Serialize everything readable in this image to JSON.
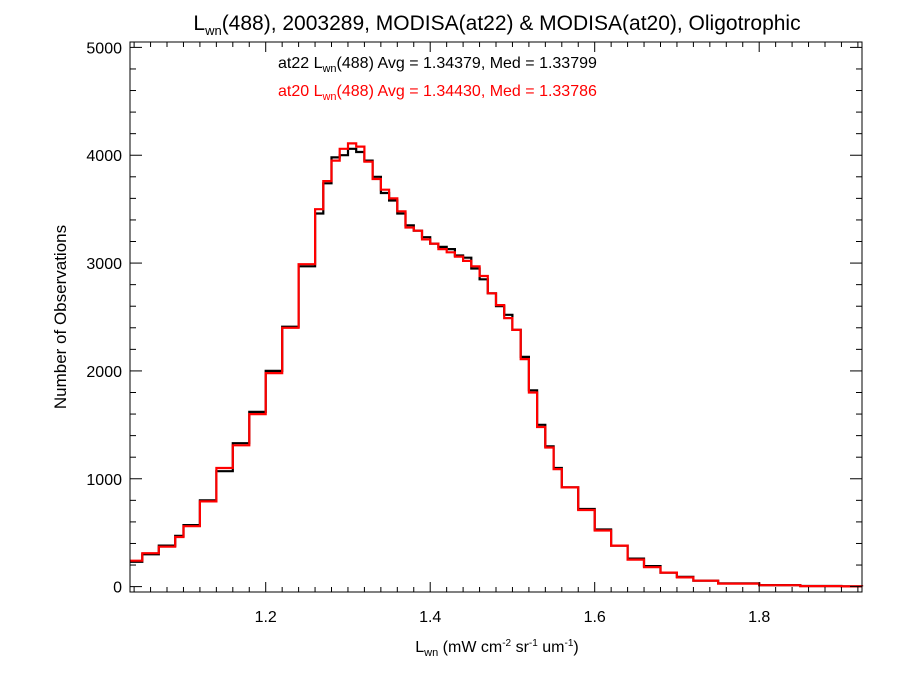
{
  "chart_data": {
    "type": "line",
    "title": {
      "base": "L",
      "sub": "wn",
      "rest": "(488), 2003289, MODISA(at22) & MODISA(at20), Oligotrophic"
    },
    "xlabel": {
      "base": "L",
      "sub": "wn",
      "rest1": " (mW cm",
      "sup1": "-2",
      "rest2": " sr",
      "sup2": "-1",
      "rest3": " um",
      "sup3": "-1",
      "rest4": ")"
    },
    "ylabel": "Number of Observations",
    "xlim": [
      1.035,
      1.925
    ],
    "ylim": [
      -50,
      5050
    ],
    "x_ticks": [
      1.2,
      1.4,
      1.6,
      1.8
    ],
    "x_tick_labels": [
      "1.2",
      "1.4",
      "1.6",
      "1.8"
    ],
    "y_ticks": [
      0,
      1000,
      2000,
      3000,
      4000,
      5000
    ],
    "y_tick_labels": [
      "0",
      "1000",
      "2000",
      "3000",
      "4000",
      "5000"
    ],
    "grid": false,
    "step": true,
    "series": [
      {
        "name": "at22",
        "color": "#000000",
        "annotation": {
          "prefix": "at22 L",
          "sub": "wn",
          "rest": "(488) Avg = 1.34379, Med = 1.33799"
        },
        "x": [
          1.035,
          1.05,
          1.07,
          1.09,
          1.1,
          1.12,
          1.14,
          1.16,
          1.18,
          1.2,
          1.22,
          1.24,
          1.26,
          1.27,
          1.28,
          1.29,
          1.3,
          1.31,
          1.32,
          1.33,
          1.34,
          1.35,
          1.36,
          1.37,
          1.38,
          1.39,
          1.4,
          1.41,
          1.42,
          1.43,
          1.44,
          1.45,
          1.46,
          1.47,
          1.48,
          1.49,
          1.5,
          1.51,
          1.52,
          1.53,
          1.54,
          1.55,
          1.56,
          1.58,
          1.6,
          1.62,
          1.64,
          1.66,
          1.68,
          1.7,
          1.72,
          1.75,
          1.8,
          1.85,
          1.9,
          1.925
        ],
        "y": [
          230,
          300,
          380,
          470,
          570,
          800,
          1070,
          1330,
          1620,
          2000,
          2410,
          2970,
          3460,
          3740,
          3980,
          4000,
          4060,
          4030,
          3950,
          3800,
          3650,
          3580,
          3460,
          3350,
          3300,
          3240,
          3180,
          3150,
          3130,
          3070,
          3050,
          2950,
          2850,
          2720,
          2600,
          2520,
          2380,
          2130,
          1820,
          1500,
          1300,
          1100,
          920,
          720,
          530,
          380,
          260,
          190,
          130,
          90,
          55,
          30,
          14,
          6,
          2,
          1
        ]
      },
      {
        "name": "at20",
        "color": "#ff0000",
        "annotation": {
          "prefix": "at20 L",
          "sub": "wn",
          "rest": "(488) Avg = 1.34430, Med = 1.33786"
        },
        "x": [
          1.035,
          1.05,
          1.07,
          1.09,
          1.1,
          1.12,
          1.14,
          1.16,
          1.18,
          1.2,
          1.22,
          1.24,
          1.26,
          1.27,
          1.28,
          1.29,
          1.3,
          1.31,
          1.32,
          1.33,
          1.34,
          1.35,
          1.36,
          1.37,
          1.38,
          1.39,
          1.4,
          1.41,
          1.42,
          1.43,
          1.44,
          1.45,
          1.46,
          1.47,
          1.48,
          1.49,
          1.5,
          1.51,
          1.52,
          1.53,
          1.54,
          1.55,
          1.56,
          1.58,
          1.6,
          1.62,
          1.64,
          1.66,
          1.68,
          1.7,
          1.72,
          1.75,
          1.8,
          1.85,
          1.9,
          1.925
        ],
        "y": [
          240,
          310,
          370,
          460,
          560,
          790,
          1100,
          1310,
          1600,
          1980,
          2400,
          2990,
          3500,
          3760,
          3950,
          4060,
          4110,
          4080,
          3940,
          3780,
          3680,
          3600,
          3480,
          3330,
          3300,
          3220,
          3180,
          3130,
          3100,
          3060,
          3020,
          2970,
          2880,
          2720,
          2610,
          2490,
          2380,
          2110,
          1800,
          1480,
          1290,
          1090,
          920,
          710,
          520,
          380,
          250,
          180,
          130,
          85,
          55,
          28,
          13,
          5,
          2,
          1
        ]
      }
    ]
  }
}
